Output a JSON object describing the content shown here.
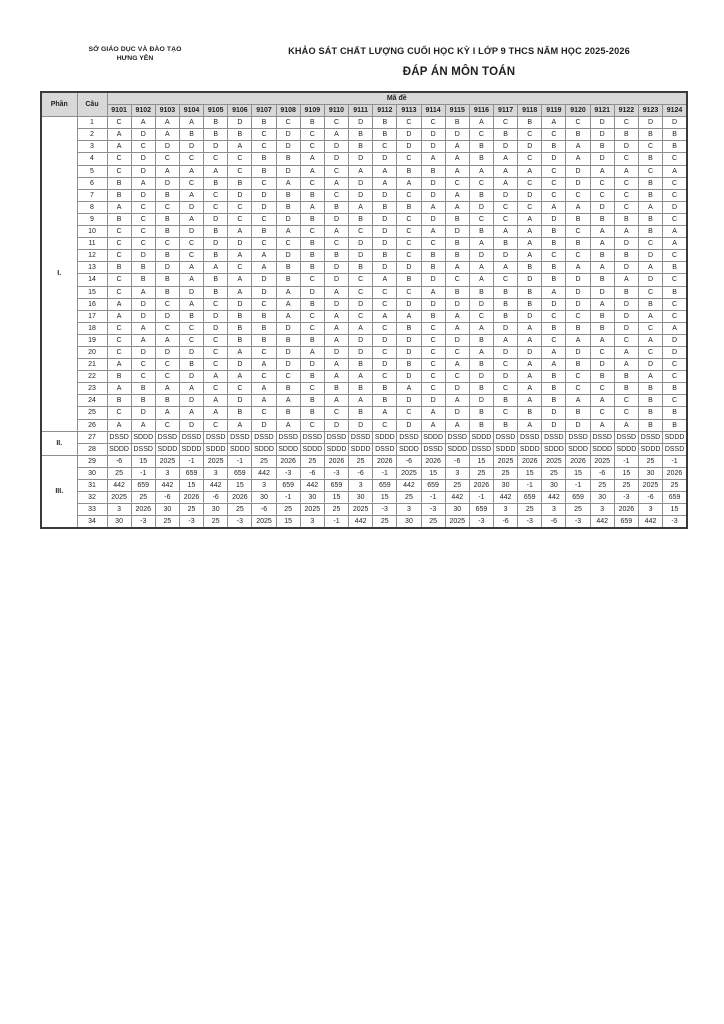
{
  "page": {
    "org_line1": "SỞ GIÁO DỤC VÀ ĐÀO TẠO",
    "org_line2": "HƯNG YÊN",
    "title": "KHẢO SÁT CHẤT LƯỢNG CUỐI HỌC KỲ I LỚP 9 THCS NĂM HỌC 2025-2026",
    "subtitle": "ĐÁP ÁN MÔN TOÁN"
  },
  "colors": {
    "header_bg": "#d8d8d8",
    "border_dark": "#3a3a3a",
    "border_light": "#8f8f8f",
    "text": "#1f1f1f"
  },
  "table": {
    "col_phan": "Phần",
    "col_cau": "Câu",
    "col_made": "Mã đề",
    "codes": [
      "9101",
      "9102",
      "9103",
      "9104",
      "9105",
      "9106",
      "9107",
      "9108",
      "9109",
      "9110",
      "9111",
      "9112",
      "9113",
      "9114",
      "9115",
      "9116",
      "9117",
      "9118",
      "9119",
      "9120",
      "9121",
      "9122",
      "9123",
      "9124"
    ],
    "parts": [
      {
        "label": "I.",
        "rows": [
          {
            "cau": "1",
            "answers": [
              "C",
              "A",
              "A",
              "A",
              "B",
              "D",
              "B",
              "C",
              "B",
              "C",
              "D",
              "B",
              "C",
              "C",
              "B",
              "A",
              "C",
              "B",
              "A",
              "C",
              "D",
              "C",
              "D",
              "D"
            ]
          },
          {
            "cau": "2",
            "answers": [
              "A",
              "D",
              "A",
              "B",
              "B",
              "B",
              "C",
              "D",
              "C",
              "A",
              "B",
              "B",
              "D",
              "D",
              "D",
              "C",
              "B",
              "C",
              "C",
              "B",
              "D",
              "B",
              "B",
              "B"
            ]
          },
          {
            "cau": "3",
            "answers": [
              "A",
              "C",
              "D",
              "D",
              "D",
              "A",
              "C",
              "D",
              "C",
              "D",
              "B",
              "C",
              "D",
              "D",
              "A",
              "B",
              "D",
              "D",
              "B",
              "A",
              "B",
              "D",
              "C",
              "B"
            ]
          },
          {
            "cau": "4",
            "answers": [
              "C",
              "D",
              "C",
              "C",
              "C",
              "C",
              "B",
              "B",
              "A",
              "D",
              "D",
              "D",
              "C",
              "A",
              "A",
              "B",
              "A",
              "C",
              "D",
              "A",
              "D",
              "C",
              "B",
              "C"
            ]
          },
          {
            "cau": "5",
            "answers": [
              "C",
              "D",
              "A",
              "A",
              "A",
              "C",
              "B",
              "D",
              "A",
              "C",
              "A",
              "A",
              "B",
              "B",
              "A",
              "A",
              "A",
              "A",
              "C",
              "D",
              "A",
              "A",
              "C",
              "A"
            ]
          },
          {
            "cau": "6",
            "answers": [
              "B",
              "A",
              "D",
              "C",
              "B",
              "B",
              "C",
              "A",
              "C",
              "A",
              "D",
              "A",
              "A",
              "D",
              "C",
              "C",
              "A",
              "C",
              "C",
              "D",
              "C",
              "C",
              "B",
              "C"
            ]
          },
          {
            "cau": "7",
            "answers": [
              "B",
              "D",
              "B",
              "A",
              "C",
              "D",
              "D",
              "B",
              "B",
              "C",
              "D",
              "D",
              "C",
              "D",
              "A",
              "B",
              "D",
              "D",
              "C",
              "C",
              "C",
              "C",
              "B",
              "C"
            ]
          },
          {
            "cau": "8",
            "answers": [
              "A",
              "C",
              "C",
              "D",
              "C",
              "C",
              "D",
              "B",
              "A",
              "B",
              "A",
              "B",
              "B",
              "A",
              "A",
              "D",
              "C",
              "C",
              "A",
              "A",
              "D",
              "C",
              "A",
              "D"
            ]
          },
          {
            "cau": "9",
            "answers": [
              "B",
              "C",
              "B",
              "A",
              "D",
              "C",
              "C",
              "D",
              "B",
              "D",
              "B",
              "D",
              "C",
              "D",
              "B",
              "C",
              "C",
              "A",
              "D",
              "B",
              "B",
              "B",
              "B",
              "C"
            ]
          },
          {
            "cau": "10",
            "answers": [
              "C",
              "C",
              "B",
              "D",
              "B",
              "A",
              "B",
              "A",
              "C",
              "A",
              "C",
              "D",
              "C",
              "A",
              "D",
              "B",
              "A",
              "A",
              "B",
              "C",
              "A",
              "A",
              "B",
              "A"
            ]
          },
          {
            "cau": "11",
            "answers": [
              "C",
              "C",
              "C",
              "C",
              "D",
              "D",
              "C",
              "C",
              "B",
              "C",
              "D",
              "D",
              "C",
              "C",
              "B",
              "A",
              "B",
              "A",
              "B",
              "B",
              "A",
              "D",
              "C",
              "A"
            ]
          },
          {
            "cau": "12",
            "answers": [
              "C",
              "D",
              "B",
              "C",
              "B",
              "A",
              "A",
              "D",
              "B",
              "B",
              "D",
              "B",
              "C",
              "B",
              "B",
              "D",
              "D",
              "A",
              "C",
              "C",
              "B",
              "B",
              "D",
              "C"
            ]
          },
          {
            "cau": "13",
            "answers": [
              "B",
              "B",
              "D",
              "A",
              "A",
              "C",
              "A",
              "B",
              "B",
              "D",
              "B",
              "D",
              "D",
              "B",
              "A",
              "A",
              "A",
              "B",
              "B",
              "A",
              "A",
              "D",
              "A",
              "B"
            ]
          },
          {
            "cau": "14",
            "answers": [
              "C",
              "B",
              "B",
              "A",
              "B",
              "A",
              "D",
              "B",
              "C",
              "D",
              "C",
              "A",
              "B",
              "D",
              "C",
              "A",
              "C",
              "D",
              "B",
              "D",
              "B",
              "A",
              "D",
              "C"
            ]
          },
          {
            "cau": "15",
            "answers": [
              "C",
              "A",
              "B",
              "D",
              "B",
              "A",
              "D",
              "A",
              "D",
              "A",
              "C",
              "C",
              "C",
              "A",
              "B",
              "B",
              "B",
              "B",
              "A",
              "D",
              "D",
              "B",
              "C",
              "B"
            ]
          },
          {
            "cau": "16",
            "answers": [
              "A",
              "D",
              "C",
              "A",
              "C",
              "D",
              "C",
              "A",
              "B",
              "D",
              "D",
              "C",
              "D",
              "D",
              "D",
              "D",
              "B",
              "B",
              "D",
              "D",
              "A",
              "D",
              "B",
              "C"
            ]
          },
          {
            "cau": "17",
            "answers": [
              "A",
              "D",
              "D",
              "B",
              "D",
              "B",
              "B",
              "A",
              "C",
              "A",
              "C",
              "A",
              "A",
              "B",
              "A",
              "C",
              "B",
              "D",
              "C",
              "C",
              "B",
              "D",
              "A",
              "C"
            ]
          },
          {
            "cau": "18",
            "answers": [
              "C",
              "A",
              "C",
              "C",
              "D",
              "B",
              "B",
              "D",
              "C",
              "A",
              "A",
              "C",
              "B",
              "C",
              "A",
              "A",
              "D",
              "A",
              "B",
              "B",
              "B",
              "D",
              "C",
              "A"
            ]
          },
          {
            "cau": "19",
            "answers": [
              "C",
              "A",
              "A",
              "C",
              "C",
              "B",
              "B",
              "B",
              "B",
              "A",
              "D",
              "D",
              "D",
              "C",
              "D",
              "B",
              "A",
              "A",
              "C",
              "A",
              "A",
              "C",
              "A",
              "D"
            ]
          },
          {
            "cau": "20",
            "answers": [
              "C",
              "D",
              "D",
              "D",
              "C",
              "A",
              "C",
              "D",
              "A",
              "D",
              "D",
              "C",
              "D",
              "C",
              "C",
              "A",
              "D",
              "D",
              "A",
              "D",
              "C",
              "A",
              "C",
              "D"
            ]
          },
          {
            "cau": "21",
            "answers": [
              "A",
              "C",
              "C",
              "B",
              "C",
              "D",
              "A",
              "D",
              "D",
              "A",
              "B",
              "D",
              "B",
              "C",
              "A",
              "B",
              "C",
              "A",
              "A",
              "B",
              "D",
              "A",
              "D",
              "C"
            ]
          },
          {
            "cau": "22",
            "answers": [
              "B",
              "C",
              "C",
              "D",
              "A",
              "A",
              "C",
              "C",
              "B",
              "A",
              "A",
              "C",
              "D",
              "C",
              "C",
              "D",
              "D",
              "A",
              "B",
              "C",
              "B",
              "B",
              "A",
              "C"
            ]
          },
          {
            "cau": "23",
            "answers": [
              "A",
              "B",
              "A",
              "A",
              "C",
              "C",
              "A",
              "B",
              "C",
              "B",
              "B",
              "B",
              "A",
              "C",
              "D",
              "B",
              "C",
              "A",
              "B",
              "C",
              "C",
              "B",
              "B",
              "B"
            ]
          },
          {
            "cau": "24",
            "answers": [
              "B",
              "B",
              "B",
              "D",
              "A",
              "D",
              "A",
              "A",
              "B",
              "A",
              "A",
              "B",
              "D",
              "D",
              "A",
              "D",
              "B",
              "A",
              "B",
              "A",
              "A",
              "C",
              "B",
              "C"
            ]
          },
          {
            "cau": "25",
            "answers": [
              "C",
              "D",
              "A",
              "A",
              "A",
              "B",
              "C",
              "B",
              "B",
              "C",
              "B",
              "A",
              "C",
              "A",
              "D",
              "B",
              "C",
              "B",
              "D",
              "B",
              "C",
              "C",
              "B",
              "B"
            ]
          },
          {
            "cau": "26",
            "answers": [
              "A",
              "A",
              "C",
              "D",
              "C",
              "A",
              "D",
              "A",
              "C",
              "D",
              "D",
              "C",
              "D",
              "A",
              "A",
              "B",
              "B",
              "A",
              "D",
              "D",
              "A",
              "A",
              "B",
              "B"
            ]
          }
        ]
      },
      {
        "label": "II.",
        "rows": [
          {
            "cau": "27",
            "answers": [
              "DSSD",
              "SDDD",
              "DSSD",
              "DSSD",
              "DSSD",
              "DSSD",
              "DSSD",
              "DSSD",
              "DSSD",
              "DSSD",
              "DSSD",
              "SDDD",
              "DSSD",
              "SDDD",
              "DSSD",
              "SDDD",
              "DSSD",
              "DSSD",
              "DSSD",
              "DSSD",
              "DSSD",
              "DSSD",
              "DSSD",
              "SDDD"
            ]
          },
          {
            "cau": "28",
            "answers": [
              "SDDD",
              "DSSD",
              "SDDD",
              "SDDD",
              "SDDD",
              "SDDD",
              "SDDD",
              "SDDD",
              "SDDD",
              "SDDD",
              "SDDD",
              "DSSD",
              "SDDD",
              "DSSD",
              "SDDD",
              "DSSD",
              "SDDD",
              "SDDD",
              "SDDD",
              "SDDD",
              "SDDD",
              "SDDD",
              "SDDD",
              "DSSD"
            ]
          }
        ]
      },
      {
        "label": "III.",
        "rows": [
          {
            "cau": "29",
            "answers": [
              "-6",
              "15",
              "2025",
              "-1",
              "2025",
              "-1",
              "25",
              "2026",
              "25",
              "2026",
              "25",
              "2026",
              "-6",
              "2026",
              "-6",
              "15",
              "2025",
              "2026",
              "2025",
              "2026",
              "2025",
              "-1",
              "25",
              "-1"
            ]
          },
          {
            "cau": "30",
            "answers": [
              "25",
              "-1",
              "3",
              "659",
              "3",
              "659",
              "442",
              "-3",
              "-6",
              "-3",
              "-6",
              "-1",
              "2025",
              "15",
              "3",
              "25",
              "25",
              "15",
              "25",
              "15",
              "-6",
              "15",
              "30",
              "2026"
            ]
          },
          {
            "cau": "31",
            "answers": [
              "442",
              "659",
              "442",
              "15",
              "442",
              "15",
              "3",
              "659",
              "442",
              "659",
              "3",
              "659",
              "442",
              "659",
              "25",
              "2026",
              "30",
              "-1",
              "30",
              "-1",
              "25",
              "25",
              "2025",
              "25"
            ]
          },
          {
            "cau": "32",
            "answers": [
              "2025",
              "25",
              "-6",
              "2026",
              "-6",
              "2026",
              "30",
              "-1",
              "30",
              "15",
              "30",
              "15",
              "25",
              "-1",
              "442",
              "-1",
              "442",
              "659",
              "442",
              "659",
              "30",
              "-3",
              "-6",
              "659"
            ]
          },
          {
            "cau": "33",
            "answers": [
              "3",
              "2026",
              "30",
              "25",
              "30",
              "25",
              "-6",
              "25",
              "2025",
              "25",
              "2025",
              "-3",
              "3",
              "-3",
              "30",
              "659",
              "3",
              "25",
              "3",
              "25",
              "3",
              "2026",
              "3",
              "15"
            ]
          },
          {
            "cau": "34",
            "answers": [
              "30",
              "-3",
              "25",
              "-3",
              "25",
              "-3",
              "2025",
              "15",
              "3",
              "-1",
              "442",
              "25",
              "30",
              "25",
              "2025",
              "-3",
              "-6",
              "-3",
              "-6",
              "-3",
              "442",
              "659",
              "442",
              "-3"
            ]
          }
        ]
      }
    ]
  }
}
